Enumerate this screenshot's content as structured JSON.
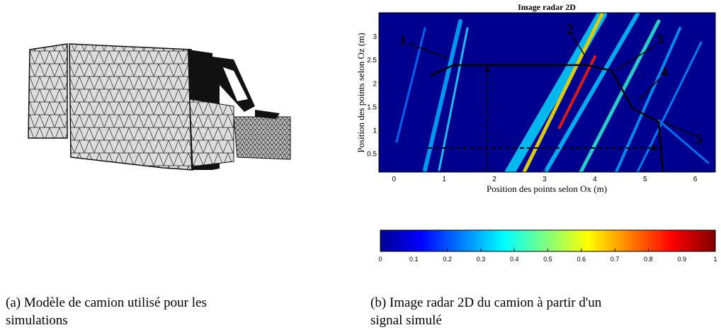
{
  "figures": [
    {
      "caption_lines": [
        "(a) Modèle de camion utilisé pour les",
        "simulations"
      ]
    },
    {
      "title": "Image radar 2D",
      "xlabel": "Position des points selon Ox (m)",
      "ylabel": "Position des points selon Oz (m)",
      "xlim": [
        -0.3,
        6.4
      ],
      "xticks": [
        0,
        1,
        2,
        3,
        4,
        5,
        6
      ],
      "ylim": [
        0.1,
        3.5
      ],
      "yticks": [
        0.5,
        1,
        1.5,
        2,
        2.5,
        3
      ],
      "annotations": [
        "1",
        "2",
        "3",
        "4",
        "5"
      ],
      "colorbar": {
        "lim": [
          0,
          1
        ],
        "ticks": [
          0,
          0.1,
          0.2,
          0.3,
          0.4,
          0.5,
          0.6,
          0.7,
          0.8,
          0.9,
          1
        ]
      },
      "caption_lines": [
        "(b) Image radar 2D du camion à partir d'un",
        "signal simulé"
      ]
    }
  ]
}
